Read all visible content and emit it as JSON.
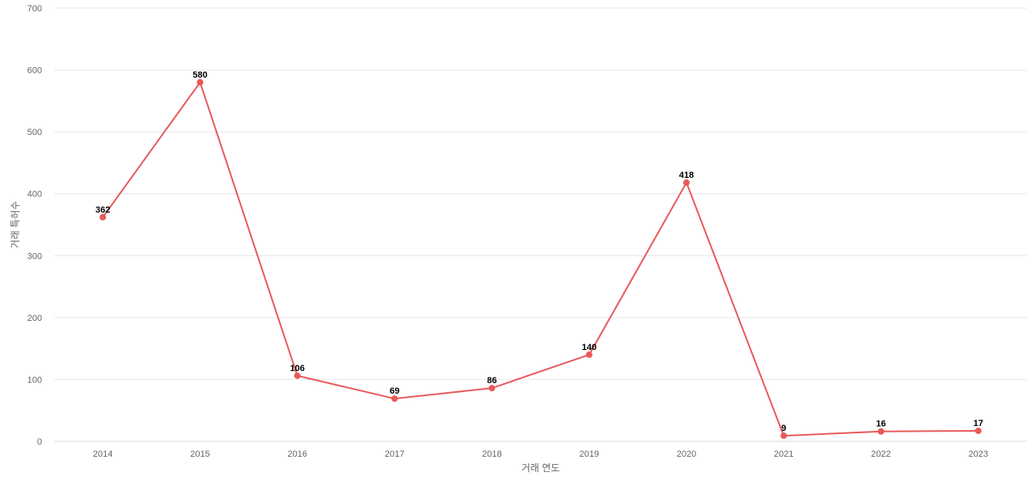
{
  "chart_data": {
    "type": "line",
    "xlabel": "거래 연도",
    "ylabel": "거래 특허수",
    "ylim": [
      0,
      700
    ],
    "yticks": [
      0,
      100,
      200,
      300,
      400,
      500,
      600,
      700
    ],
    "grid": true,
    "categories": [
      "2014",
      "2015",
      "2016",
      "2017",
      "2018",
      "2019",
      "2020",
      "2021",
      "2022",
      "2023"
    ],
    "series": [
      {
        "values": [
          362,
          580,
          106,
          69,
          86,
          140,
          418,
          9,
          16,
          17
        ],
        "color": "#e85a5a"
      }
    ]
  }
}
